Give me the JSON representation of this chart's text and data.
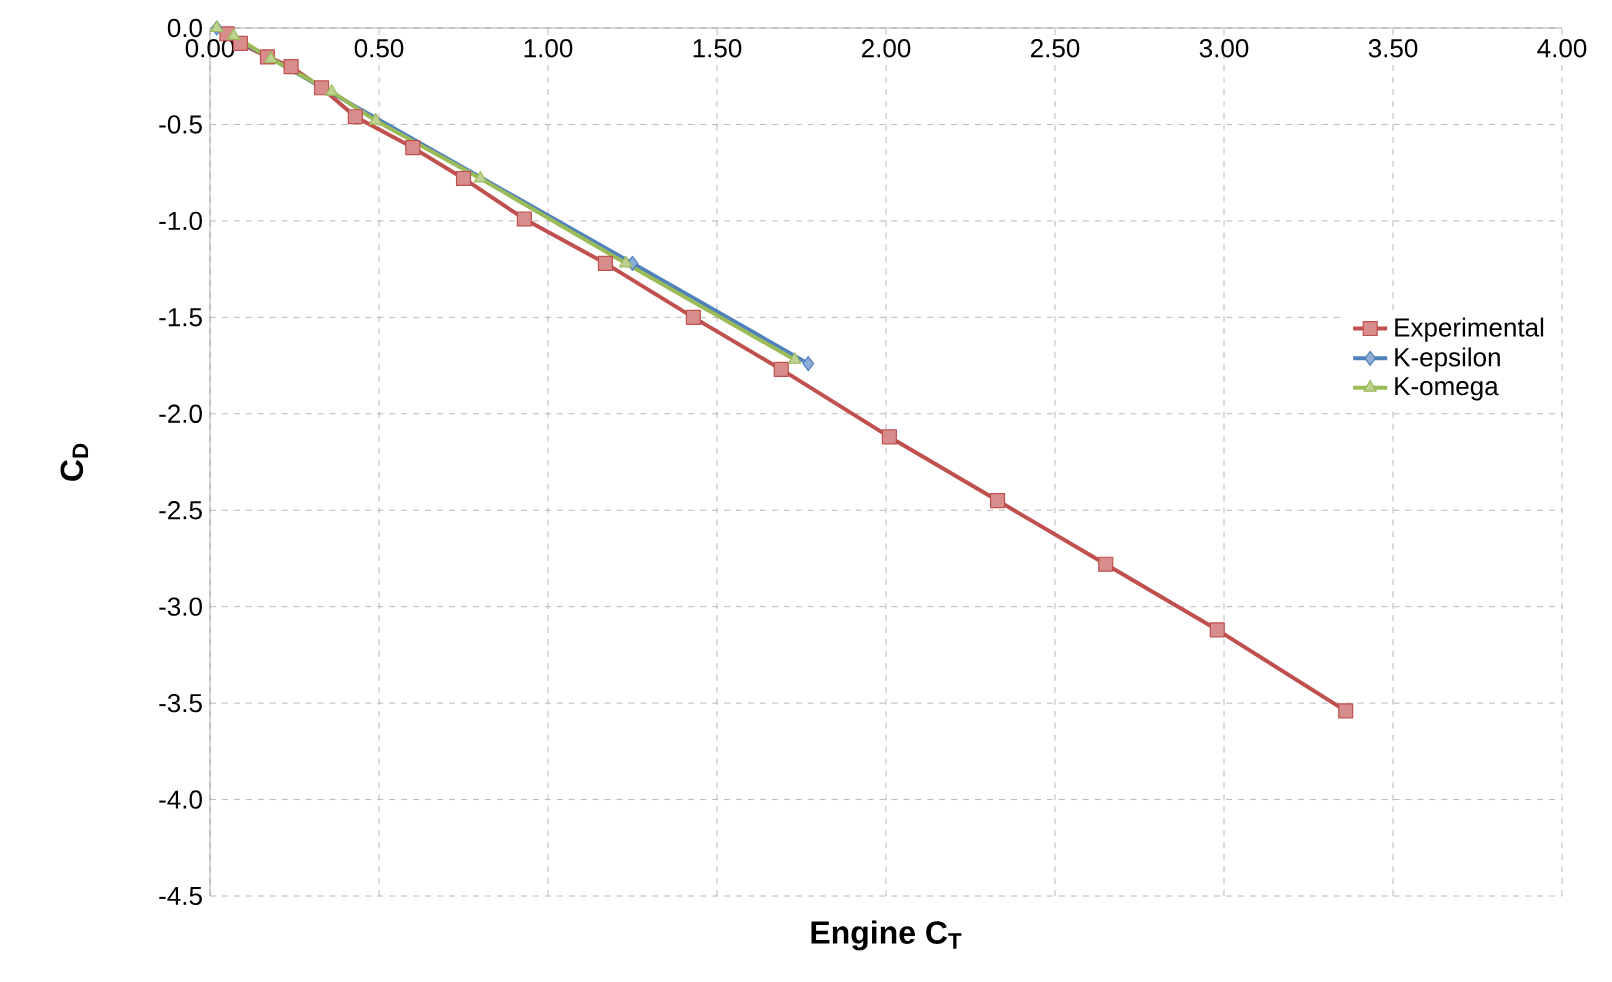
{
  "chart_data": {
    "type": "line",
    "xlabel": "Engine C$_{T}$",
    "ylabel": "C$_{D}$",
    "xlim": [
      0,
      4
    ],
    "ylim": [
      -4.5,
      0
    ],
    "xticks": [
      {
        "value": 0,
        "label": "0.00"
      },
      {
        "value": 0.5,
        "label": "0.50"
      },
      {
        "value": 1,
        "label": "1.00"
      },
      {
        "value": 1.5,
        "label": "1.50"
      },
      {
        "value": 2,
        "label": "2.00"
      },
      {
        "value": 2.5,
        "label": "2.50"
      },
      {
        "value": 3,
        "label": "3.00"
      },
      {
        "value": 3.5,
        "label": "3.50"
      },
      {
        "value": 4,
        "label": "4.00"
      }
    ],
    "yticks": [
      {
        "value": 0,
        "label": "0.0"
      },
      {
        "value": -0.5,
        "label": "-0.5"
      },
      {
        "value": -1,
        "label": "-1.0"
      },
      {
        "value": -1.5,
        "label": "-1.5"
      },
      {
        "value": -2,
        "label": "-2.0"
      },
      {
        "value": -2.5,
        "label": "-2.5"
      },
      {
        "value": -3,
        "label": "-3.0"
      },
      {
        "value": -3.5,
        "label": "-3.5"
      },
      {
        "value": -4,
        "label": "-4.0"
      },
      {
        "value": -4.5,
        "label": "-4.5"
      }
    ],
    "grid": true,
    "legend": "right",
    "line_style": "solid",
    "series": [
      {
        "name": "Experimental",
        "color": "#c0504d",
        "marker": "square",
        "x": [
          0.05,
          0.09,
          0.17,
          0.24,
          0.33,
          0.43,
          0.6,
          0.75,
          0.93,
          1.17,
          1.43,
          1.69,
          2.01,
          2.33,
          2.65,
          2.98,
          3.36
        ],
        "values": [
          -0.03,
          -0.08,
          -0.15,
          -0.2,
          -0.31,
          -0.46,
          -0.62,
          -0.78,
          -0.99,
          -1.22,
          -1.5,
          -1.77,
          -2.12,
          -2.45,
          -2.78,
          -3.12,
          -3.54
        ]
      },
      {
        "name": "K-epsilon",
        "color": "#4f81bd",
        "marker": "diamond",
        "x": [
          0.02,
          0.07,
          0.18,
          0.36,
          0.49,
          0.81,
          1.25,
          1.77
        ],
        "values": [
          0.0,
          null,
          null,
          null,
          null,
          null,
          -1.22,
          -1.74
        ]
      },
      {
        "name": "K-omega",
        "color": "#9bbb59",
        "marker": "triangle",
        "x": [
          0.02,
          0.07,
          0.18,
          0.36,
          0.49,
          0.8,
          1.23,
          1.73
        ],
        "values": [
          0.0,
          -0.04,
          -0.16,
          -0.33,
          -0.48,
          -0.78,
          -1.22,
          -1.72
        ]
      }
    ]
  }
}
